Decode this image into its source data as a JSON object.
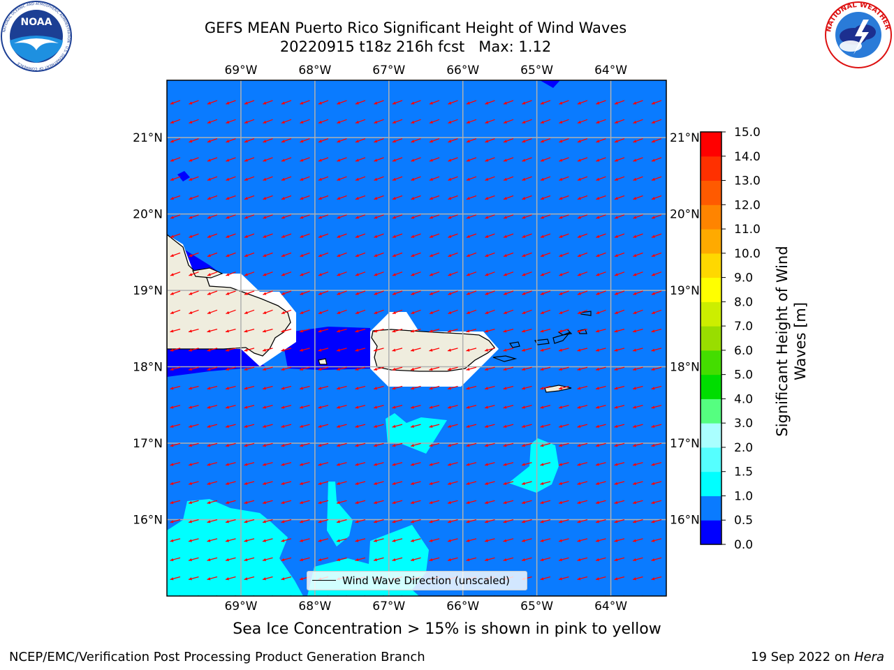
{
  "title": {
    "line1": "GEFS MEAN Puerto Rico Significant Height of Wind Waves",
    "line2_left": "20220915 t18z 216h fcst",
    "line2_right": "Max: 1.12"
  },
  "logos": {
    "noaa": {
      "name": "NOAA",
      "ring_text": "NATIONAL OCEANIC AND ATMOSPHERIC ADMINISTRATION · U.S. DEPARTMENT OF COMMERCE"
    },
    "nws": {
      "ring_text": "NATIONAL WEATHER SERVICE"
    }
  },
  "map": {
    "lon_ticks": [
      "69°W",
      "68°W",
      "67°W",
      "66°W",
      "65°W",
      "64°W"
    ],
    "lat_ticks": [
      "21°N",
      "20°N",
      "19°N",
      "18°N",
      "17°N",
      "16°N"
    ],
    "lon_values": [
      -69,
      -68,
      -67,
      -66,
      -65,
      -64
    ],
    "lat_values": [
      21,
      20,
      19,
      18,
      17,
      16
    ],
    "extent": {
      "lon_min": -70.0,
      "lon_max": -63.25,
      "lat_min": 15.0,
      "lat_max": 21.75
    },
    "arrow_color": "#ff0000",
    "ocean_color": "#0a7bff",
    "land_color": "#efedde",
    "grid_color": "#b0b0b0"
  },
  "legend": {
    "label": "Wind Wave Direction (unscaled)"
  },
  "colorbar": {
    "label": "Significant Height of Wind Waves [m]",
    "label_line1": "Significant Height of Wind",
    "label_line2": "Waves [m]",
    "ticks": [
      "15.0",
      "14.0",
      "13.0",
      "12.0",
      "11.0",
      "10.0",
      "9.0",
      "8.0",
      "7.0",
      "6.0",
      "5.0",
      "4.0",
      "3.0",
      "2.0",
      "1.5",
      "1.0",
      "0.5",
      "0.0"
    ],
    "tick_values": [
      15.0,
      14.0,
      13.0,
      12.0,
      11.0,
      10.0,
      9.0,
      8.0,
      7.0,
      6.0,
      5.0,
      4.0,
      3.0,
      2.0,
      1.5,
      1.0,
      0.5,
      0.0
    ],
    "colors_bottom_to_top": [
      "#0000ff",
      "#0a7bff",
      "#00ffff",
      "#55ffff",
      "#aaffff",
      "#55ff80",
      "#00dd00",
      "#44dd00",
      "#99dd00",
      "#ccee00",
      "#ffff00",
      "#ffd800",
      "#ffaa00",
      "#ff8400",
      "#ff5a00",
      "#ff3000",
      "#ff0000"
    ]
  },
  "caption": "Sea Ice Concentration > 15% is shown in pink to yellow",
  "footer": {
    "left": "NCEP/EMC/Verification Post Processing Product Generation Branch",
    "right_prefix": "19 Sep 2022 on ",
    "right_italic": "Hera"
  }
}
